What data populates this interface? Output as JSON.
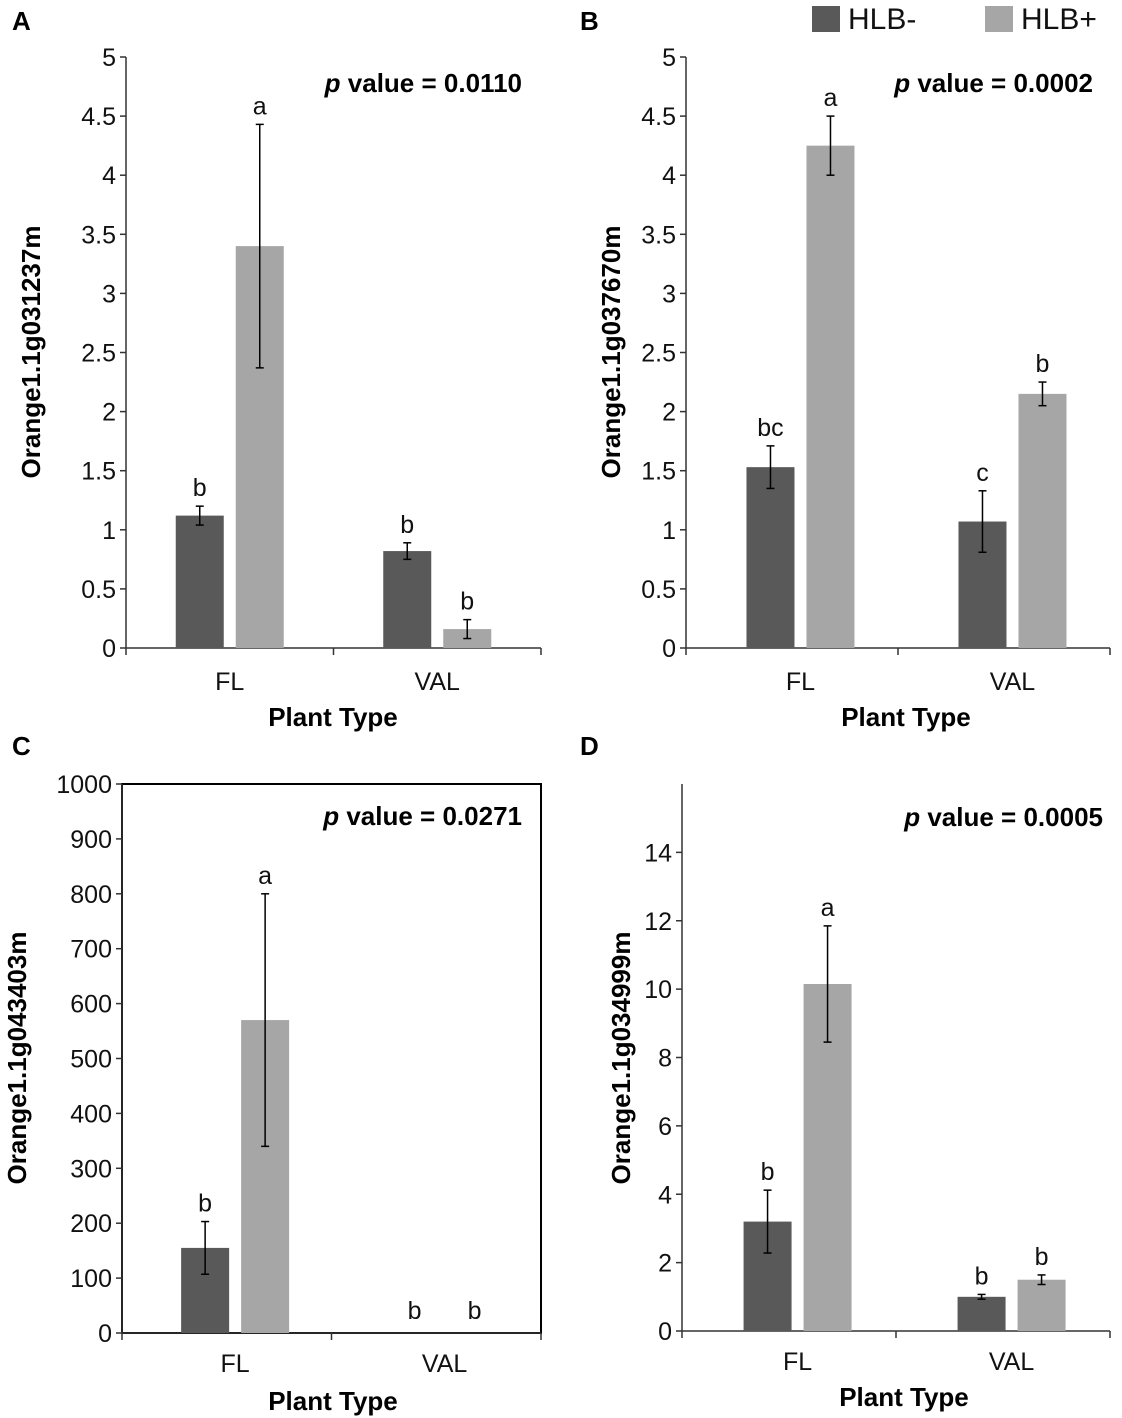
{
  "legend": {
    "items": [
      {
        "label": "HLB-",
        "color": "#595959"
      },
      {
        "label": "HLB+",
        "color": "#a6a6a6"
      }
    ]
  },
  "chart_data": [
    {
      "panel": "A",
      "type": "bar",
      "title": "",
      "xlabel": "Plant Type",
      "ylabel": "Orange1.1g031237m",
      "p_prefix": "p",
      "p_text": " value = 0.0110",
      "categories": [
        "FL",
        "VAL"
      ],
      "ylim": [
        0,
        5
      ],
      "yticks": [
        0,
        0.5,
        1,
        1.5,
        2,
        2.5,
        3,
        3.5,
        4,
        4.5,
        5
      ],
      "ytick_labels": [
        "0",
        "0.5",
        "1",
        "1.5",
        "2",
        "2.5",
        "3",
        "3.5",
        "4",
        "4.5",
        "5"
      ],
      "series": [
        {
          "name": "HLB-",
          "values": [
            1.12,
            0.82
          ],
          "errors": [
            0.08,
            0.07
          ],
          "letters": [
            "b",
            "b"
          ]
        },
        {
          "name": "HLB+",
          "values": [
            3.4,
            0.16
          ],
          "errors": [
            1.03,
            0.08
          ],
          "letters": [
            "a",
            "b"
          ]
        }
      ]
    },
    {
      "panel": "B",
      "type": "bar",
      "title": "",
      "xlabel": "Plant Type",
      "ylabel": "Orange1.1g037670m",
      "p_prefix": "p",
      "p_text": " value = 0.0002",
      "categories": [
        "FL",
        "VAL"
      ],
      "ylim": [
        0,
        5
      ],
      "yticks": [
        0,
        0.5,
        1,
        1.5,
        2,
        2.5,
        3,
        3.5,
        4,
        4.5,
        5
      ],
      "ytick_labels": [
        "0",
        "0.5",
        "1",
        "1.5",
        "2",
        "2.5",
        "3",
        "3.5",
        "4",
        "4.5",
        "5"
      ],
      "series": [
        {
          "name": "HLB-",
          "values": [
            1.53,
            1.07
          ],
          "errors": [
            0.18,
            0.26
          ],
          "letters": [
            "bc",
            "c"
          ]
        },
        {
          "name": "HLB+",
          "values": [
            4.25,
            2.15
          ],
          "errors": [
            0.25,
            0.1
          ],
          "letters": [
            "a",
            "b"
          ]
        }
      ]
    },
    {
      "panel": "C",
      "type": "bar",
      "title": "",
      "xlabel": "Plant Type",
      "ylabel": "Orange1.1g043403m",
      "p_prefix": "p",
      "p_text": " value = 0.0271",
      "categories": [
        "FL",
        "VAL"
      ],
      "ylim": [
        0,
        1000
      ],
      "yticks": [
        0,
        100,
        200,
        300,
        400,
        500,
        600,
        700,
        800,
        900,
        1000
      ],
      "ytick_labels": [
        "0",
        "100",
        "200",
        "300",
        "400",
        "500",
        "600",
        "700",
        "800",
        "900",
        "1000"
      ],
      "series": [
        {
          "name": "HLB-",
          "values": [
            155,
            0
          ],
          "errors": [
            48,
            0
          ],
          "letters": [
            "b",
            "b"
          ]
        },
        {
          "name": "HLB+",
          "values": [
            570,
            0
          ],
          "errors": [
            230,
            0
          ],
          "letters": [
            "a",
            "b"
          ]
        }
      ]
    },
    {
      "panel": "D",
      "type": "bar",
      "title": "",
      "xlabel": "Plant Type",
      "ylabel": "Orange1.1g034999m",
      "p_prefix": "p",
      "p_text": " value = 0.0005",
      "categories": [
        "FL",
        "VAL"
      ],
      "ylim": [
        0,
        16
      ],
      "yticks": [
        0,
        2,
        4,
        6,
        8,
        10,
        12,
        14
      ],
      "ytick_labels": [
        "0",
        "2",
        "4",
        "6",
        "8",
        "10",
        "12",
        "14"
      ],
      "series": [
        {
          "name": "HLB-",
          "values": [
            3.2,
            1.0
          ],
          "errors": [
            0.92,
            0.07
          ],
          "letters": [
            "b",
            "b"
          ]
        },
        {
          "name": "HLB+",
          "values": [
            10.15,
            1.5
          ],
          "errors": [
            1.7,
            0.14
          ],
          "letters": [
            "a",
            "b"
          ]
        }
      ]
    }
  ]
}
